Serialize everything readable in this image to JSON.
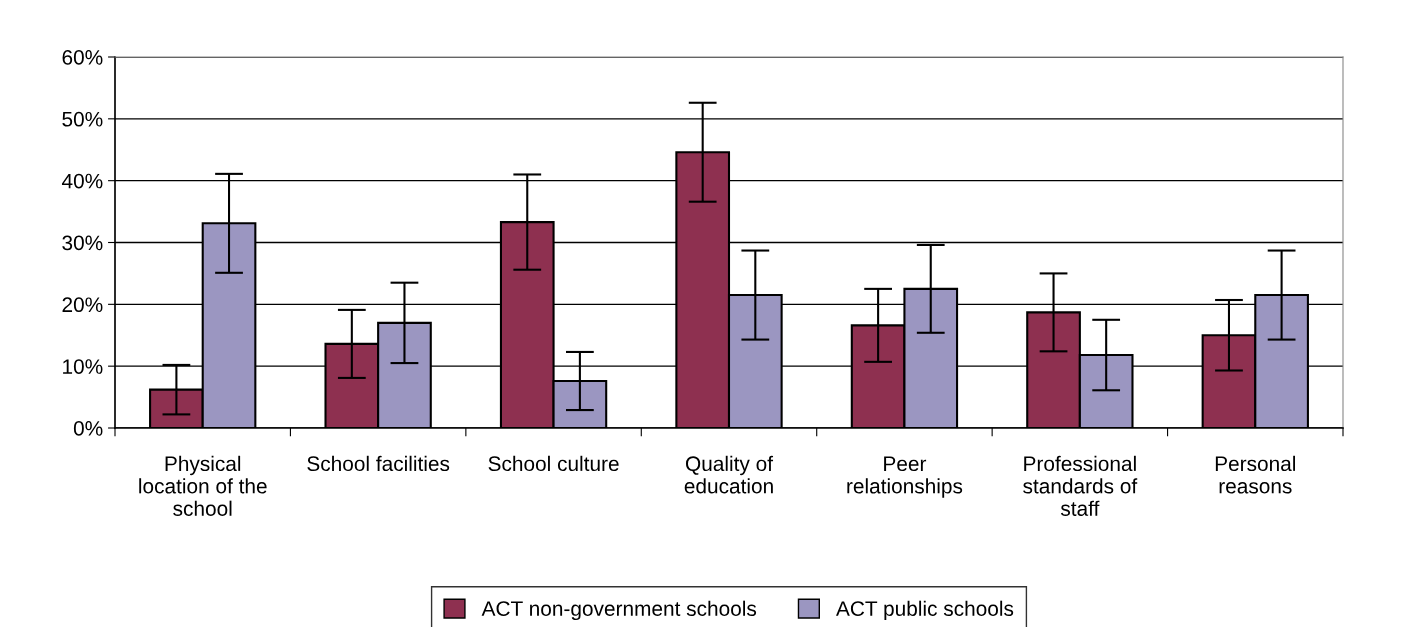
{
  "chart_data": {
    "type": "bar",
    "categories": [
      "Physical\nlocation of the\nschool",
      "School facilities",
      "School culture",
      "Quality of\neducation",
      "Peer\nrelationships",
      "Professional\nstandards of\nstaff",
      "Personal\nreasons"
    ],
    "series": [
      {
        "name": "ACT non-government schools",
        "color": "#8e3050",
        "values": [
          6.2,
          13.6,
          33.3,
          44.6,
          16.6,
          18.7,
          15.0
        ],
        "errors": [
          4,
          5.5,
          7.7,
          8,
          5.9,
          6.3,
          5.7
        ]
      },
      {
        "name": "ACT public schools",
        "color": "#9b96c1",
        "values": [
          33.1,
          17.0,
          7.6,
          21.5,
          22.5,
          11.8,
          21.5
        ],
        "errors": [
          8,
          6.5,
          4.7,
          7.2,
          7.1,
          5.7,
          7.2
        ]
      }
    ],
    "ylim": [
      0,
      60
    ],
    "yticks": [
      {
        "value": 0,
        "label": "0%"
      },
      {
        "value": 10,
        "label": "10%"
      },
      {
        "value": 20,
        "label": "20%"
      },
      {
        "value": 30,
        "label": "30%"
      },
      {
        "value": 40,
        "label": "40%"
      },
      {
        "value": 50,
        "label": "50%"
      },
      {
        "value": 60,
        "label": "60%"
      }
    ],
    "grid": "y",
    "legend": "bottom"
  }
}
